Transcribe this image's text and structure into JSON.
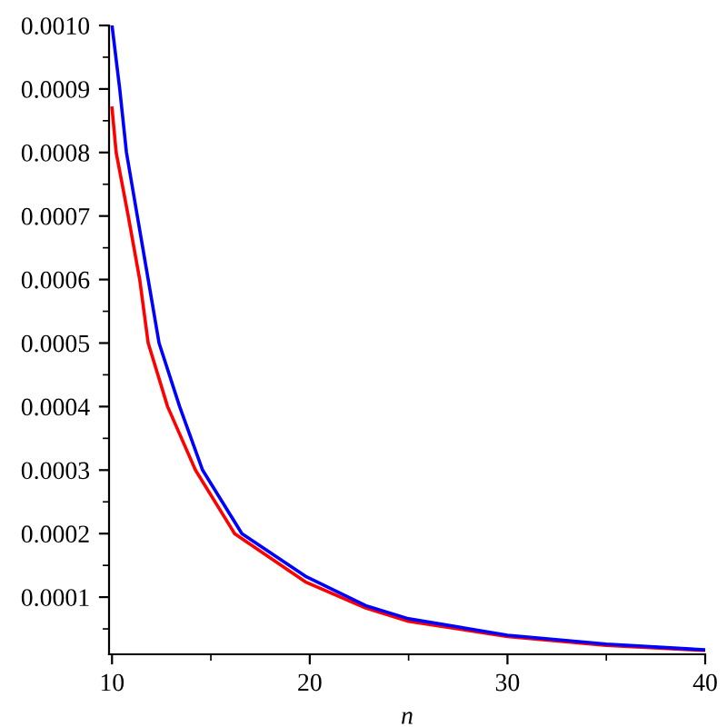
{
  "chart_data": {
    "type": "line",
    "xlabel": "n",
    "x": [
      10,
      10.39,
      10.73,
      11.28,
      11.83,
      12.38,
      13.42,
      14.58,
      16.57,
      19.78,
      22.83,
      25,
      30,
      35,
      40
    ],
    "series": [
      {
        "color": "#ff0000",
        "x": [
          10,
          10.21,
          10.82,
          11.4,
          11.83,
          12.81,
          14.22,
          16.2,
          19.78,
          22.83,
          25,
          30,
          35,
          40
        ],
        "values": [
          0.00087,
          0.0008,
          0.0007,
          0.0006,
          0.0005,
          0.0004,
          0.0003,
          0.0002,
          0.000124,
          8.3e-05,
          6.2e-05,
          3.8e-05,
          2.4e-05,
          1.6e-05
        ]
      },
      {
        "color": "#0000ff",
        "values": [
          0.001,
          0.0009,
          0.0008,
          0.0007,
          0.0006,
          0.0005,
          0.0004,
          0.0003,
          0.0002,
          0.000133,
          8.66e-05,
          6.6e-05,
          4e-05,
          2.6e-05,
          1.7e-05
        ]
      }
    ],
    "xlim": [
      9.85,
      40
    ],
    "ylim": [
      1e-05,
      0.001
    ],
    "xticks": [
      10,
      {
        "value": 15,
        "label": null
      },
      20,
      {
        "value": 25,
        "label": null
      },
      30,
      {
        "value": 35,
        "label": null
      },
      40
    ],
    "yticks": [
      {
        "value": 5e-05,
        "label": null
      },
      0.0001,
      {
        "value": 0.00015,
        "label": null
      },
      0.0002,
      {
        "value": 0.00025,
        "label": null
      },
      0.0003,
      {
        "value": 0.00035,
        "label": null
      },
      0.0004,
      {
        "value": 0.00045,
        "label": null
      },
      0.0005,
      {
        "value": 0.00055,
        "label": null
      },
      0.0006,
      {
        "value": 0.00065,
        "label": null
      },
      0.0007,
      {
        "value": 0.00075,
        "label": null
      },
      0.0008,
      {
        "value": 0.00085,
        "label": null
      },
      0.0009,
      {
        "value": 0.00095,
        "label": null
      },
      {
        "value": 0.001,
        "label": "0.0010"
      }
    ],
    "grid": false,
    "legend": false
  }
}
